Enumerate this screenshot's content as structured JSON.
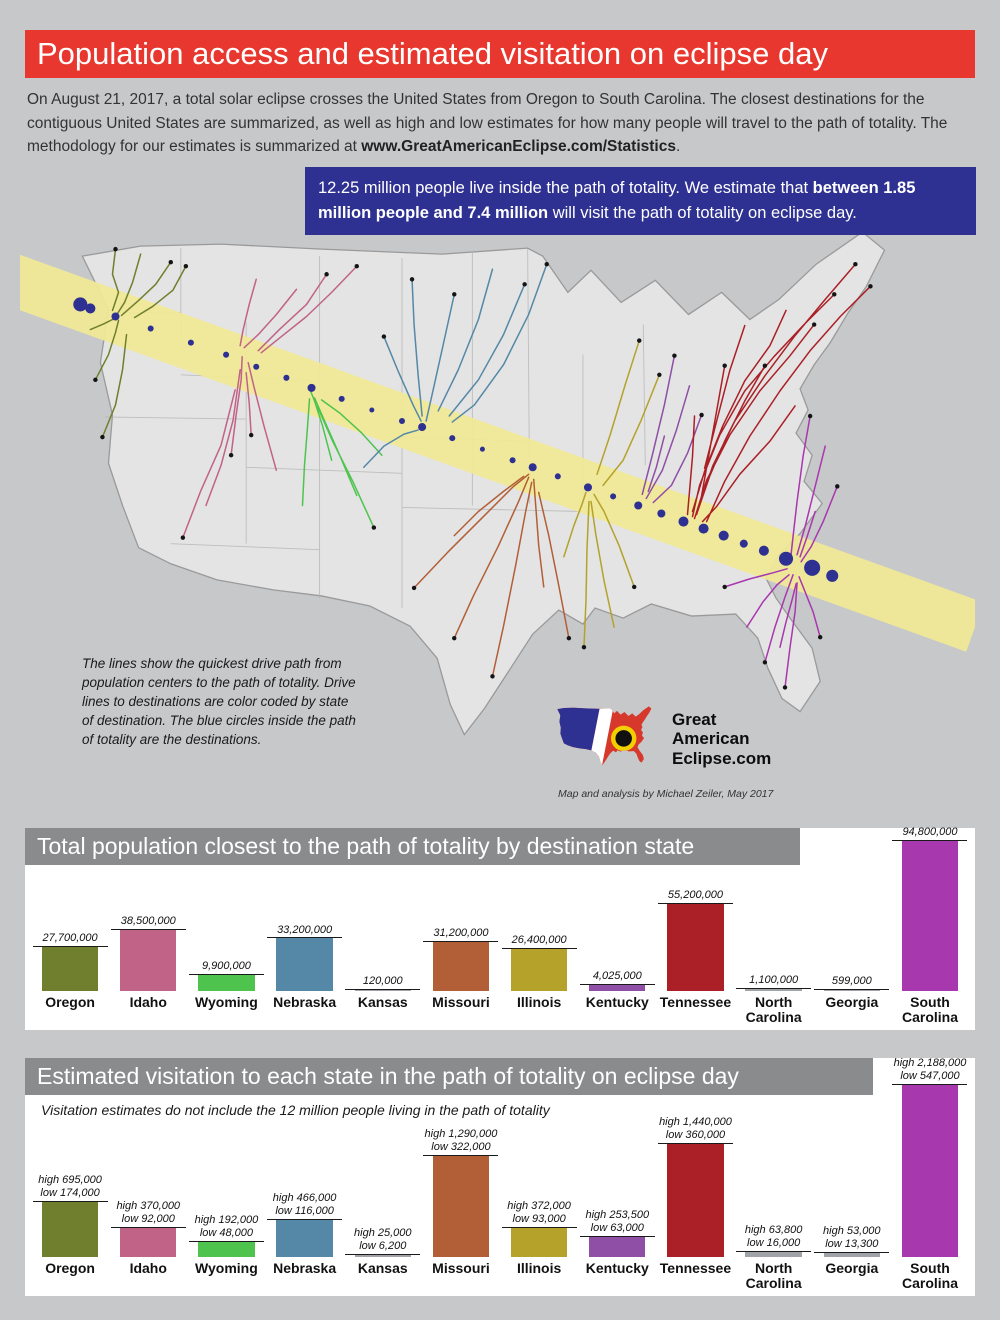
{
  "header": {
    "title": "Population access and estimated visitation on eclipse day",
    "color": "#e8372e"
  },
  "intro": {
    "p1": "On August 21, 2017, a total solar eclipse crosses the United States from Oregon to South Carolina. The closest destinations for the contiguous United States are summarized, as well as high and low estimates for how many people will travel to the path of totality. The methodology for our estimates is summarized at ",
    "link": "www.GreatAmericanEclipse.com/Statistics",
    "p2": "."
  },
  "callout": {
    "t1": "12.25 million people live inside the path of totality. We estimate that ",
    "b1": "between 1.85 million people and 7.4 million",
    "t2": " will visit the path of totality on eclipse day.",
    "color": "#2e3192"
  },
  "map": {
    "annotation": "The lines show the quickest drive path from population centers to the path of totality. Drive lines to destinations are color coded by state of destination. The blue circles inside the path of totality are the destinations.",
    "credit": "Map and analysis by Michael Zeiler, May 2017",
    "band_color": "#f1ea96",
    "destination_color": "#2e3192"
  },
  "logo": {
    "icon": "usa-flag-eclipse-icon",
    "l1": "Great",
    "l2": "American",
    "l3": "Eclipse.com"
  },
  "chart_data": [
    {
      "type": "bar",
      "title": "Total population closest to the path of totality by destination state",
      "categories": [
        "Oregon",
        "Idaho",
        "Wyoming",
        "Nebraska",
        "Kansas",
        "Missouri",
        "Illinois",
        "Kentucky",
        "Tennessee",
        "North Carolina",
        "Georgia",
        "South Carolina"
      ],
      "values": [
        27700000,
        38500000,
        9900000,
        33200000,
        120000,
        31200000,
        26400000,
        4025000,
        55200000,
        1100000,
        599000,
        94800000
      ],
      "value_labels": [
        [
          "27,700,000"
        ],
        [
          "38,500,000"
        ],
        [
          "9,900,000"
        ],
        [
          "33,200,000"
        ],
        [
          "120,000"
        ],
        [
          "31,200,000"
        ],
        [
          "26,400,000"
        ],
        [
          "4,025,000"
        ],
        [
          "55,200,000"
        ],
        [
          "1,100,000"
        ],
        [
          "599,000"
        ],
        [
          "94,800,000"
        ]
      ],
      "colors": [
        "#6f7f2e",
        "#c16387",
        "#4ec44e",
        "#5588a7",
        "#a0a4a8",
        "#b25f37",
        "#b4a22b",
        "#8f4fa6",
        "#ab2026",
        "#a0a4a8",
        "#a0a4a8",
        "#a838ad"
      ],
      "max_value": 94800000,
      "xlabel": "",
      "ylabel": "",
      "grid": false,
      "legend": "none"
    },
    {
      "type": "bar",
      "title": "Estimated visitation to each state in the path of totality on eclipse day",
      "subtitle": "Visitation estimates do not include the 12 million people living in the path of totality",
      "categories": [
        "Oregon",
        "Idaho",
        "Wyoming",
        "Nebraska",
        "Kansas",
        "Missouri",
        "Illinois",
        "Kentucky",
        "Tennessee",
        "North Carolina",
        "Georgia",
        "South Carolina"
      ],
      "series": [
        {
          "name": "high",
          "values": [
            695000,
            370000,
            192000,
            466000,
            25000,
            1290000,
            372000,
            253500,
            1440000,
            63800,
            53000,
            2188000
          ]
        },
        {
          "name": "low",
          "values": [
            174000,
            92000,
            48000,
            116000,
            6200,
            322000,
            93000,
            63000,
            360000,
            16000,
            13300,
            547000
          ]
        }
      ],
      "value_labels": [
        [
          "high 695,000",
          "low 174,000"
        ],
        [
          "high 370,000",
          "low 92,000"
        ],
        [
          "high 192,000",
          "low 48,000"
        ],
        [
          "high 466,000",
          "low 116,000"
        ],
        [
          "high 25,000",
          "low 6,200"
        ],
        [
          "high 1,290,000",
          "low 322,000"
        ],
        [
          "high 372,000",
          "low 93,000"
        ],
        [
          "high 253,500",
          "low 63,000"
        ],
        [
          "high 1,440,000",
          "low 360,000"
        ],
        [
          "high 63,800",
          "low 16,000"
        ],
        [
          "high 53,000",
          "low 13,300"
        ],
        [
          "high 2,188,000",
          "low 547,000"
        ]
      ],
      "colors": [
        "#6f7f2e",
        "#c16387",
        "#4ec44e",
        "#5588a7",
        "#a0a4a8",
        "#b25f37",
        "#b4a22b",
        "#8f4fa6",
        "#ab2026",
        "#a0a4a8",
        "#a0a4a8",
        "#a838ad"
      ],
      "max_value": 2188000,
      "xlabel": "",
      "ylabel": "",
      "grid": false,
      "legend": "none"
    }
  ]
}
